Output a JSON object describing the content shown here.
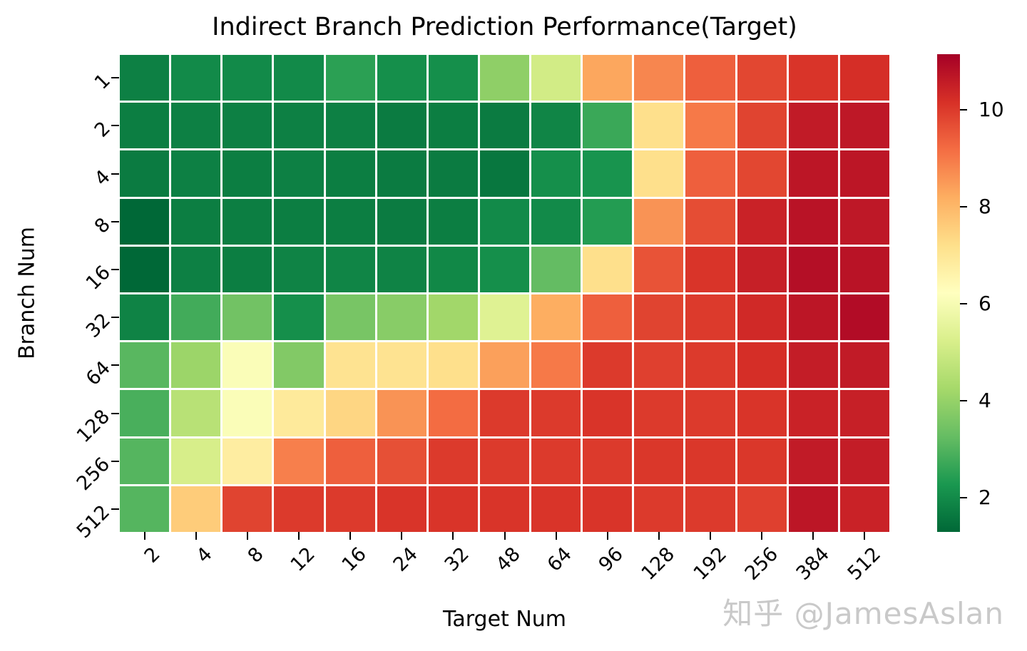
{
  "title": "Indirect Branch Prediction Performance(Target)",
  "watermark": "知乎 @JamesAslan",
  "colors": {
    "background": "#ffffff",
    "grid_line": "#ffffff",
    "tick": "#000000",
    "text": "#000000",
    "watermark": "#c9c9c9"
  },
  "chart_data": {
    "type": "heatmap",
    "title": "Indirect Branch Prediction Performance(Target)",
    "xlabel": "Target Num",
    "ylabel": "Branch Num",
    "x_categories": [
      "2",
      "4",
      "8",
      "12",
      "16",
      "24",
      "32",
      "48",
      "64",
      "96",
      "128",
      "192",
      "256",
      "384",
      "512"
    ],
    "y_categories": [
      "1",
      "2",
      "4",
      "8",
      "16",
      "32",
      "64",
      "128",
      "256",
      "512"
    ],
    "colormap": "RdYlGn_r",
    "colormap_colors": [
      "#006837",
      "#1a9850",
      "#66bd63",
      "#a6d96a",
      "#d9ef8b",
      "#ffffbf",
      "#fee08b",
      "#fdae61",
      "#f46d43",
      "#d73027",
      "#a50026"
    ],
    "vmin": 1.3,
    "vmax": 11.15,
    "colorbar_ticks": [
      2,
      4,
      6,
      8,
      10
    ],
    "grid": true,
    "legend_position": "right-colorbar",
    "values": [
      [
        1.8,
        2.0,
        2.0,
        2.0,
        2.5,
        2.1,
        2.1,
        3.9,
        5.1,
        8.3,
        8.8,
        9.4,
        9.8,
        10.1,
        10.2
      ],
      [
        1.75,
        1.8,
        1.8,
        1.8,
        1.8,
        1.7,
        1.75,
        1.7,
        1.9,
        2.7,
        7.2,
        9.0,
        9.85,
        10.6,
        10.65
      ],
      [
        1.7,
        1.8,
        1.75,
        1.8,
        1.75,
        1.7,
        1.7,
        1.6,
        2.1,
        2.2,
        7.2,
        9.4,
        9.8,
        10.7,
        10.7
      ],
      [
        1.3,
        1.75,
        1.75,
        1.75,
        1.75,
        1.7,
        1.75,
        2.0,
        2.0,
        2.4,
        8.6,
        9.7,
        10.45,
        10.75,
        10.65
      ],
      [
        1.3,
        1.8,
        1.75,
        1.85,
        1.9,
        1.85,
        1.95,
        2.1,
        3.25,
        7.2,
        9.6,
        10.1,
        10.5,
        10.85,
        10.75
      ],
      [
        1.85,
        2.8,
        3.45,
        2.1,
        3.55,
        3.8,
        4.2,
        5.4,
        8.2,
        9.4,
        9.85,
        10.0,
        10.3,
        10.7,
        10.9
      ],
      [
        3.1,
        4.1,
        6.1,
        3.7,
        7.1,
        7.1,
        7.2,
        8.4,
        9.0,
        10.0,
        9.9,
        10.0,
        10.2,
        10.55,
        10.6
      ],
      [
        2.9,
        4.6,
        6.1,
        6.9,
        7.4,
        8.6,
        9.2,
        10.0,
        10.0,
        10.1,
        10.0,
        10.0,
        10.1,
        10.45,
        10.5
      ],
      [
        3.05,
        5.2,
        6.8,
        8.9,
        9.4,
        9.65,
        10.0,
        10.0,
        10.0,
        10.0,
        10.05,
        10.05,
        10.05,
        10.6,
        10.55
      ],
      [
        3.05,
        7.6,
        9.85,
        10.0,
        10.0,
        10.1,
        10.1,
        10.1,
        10.1,
        10.1,
        10.0,
        10.0,
        9.9,
        10.7,
        10.45
      ]
    ]
  }
}
